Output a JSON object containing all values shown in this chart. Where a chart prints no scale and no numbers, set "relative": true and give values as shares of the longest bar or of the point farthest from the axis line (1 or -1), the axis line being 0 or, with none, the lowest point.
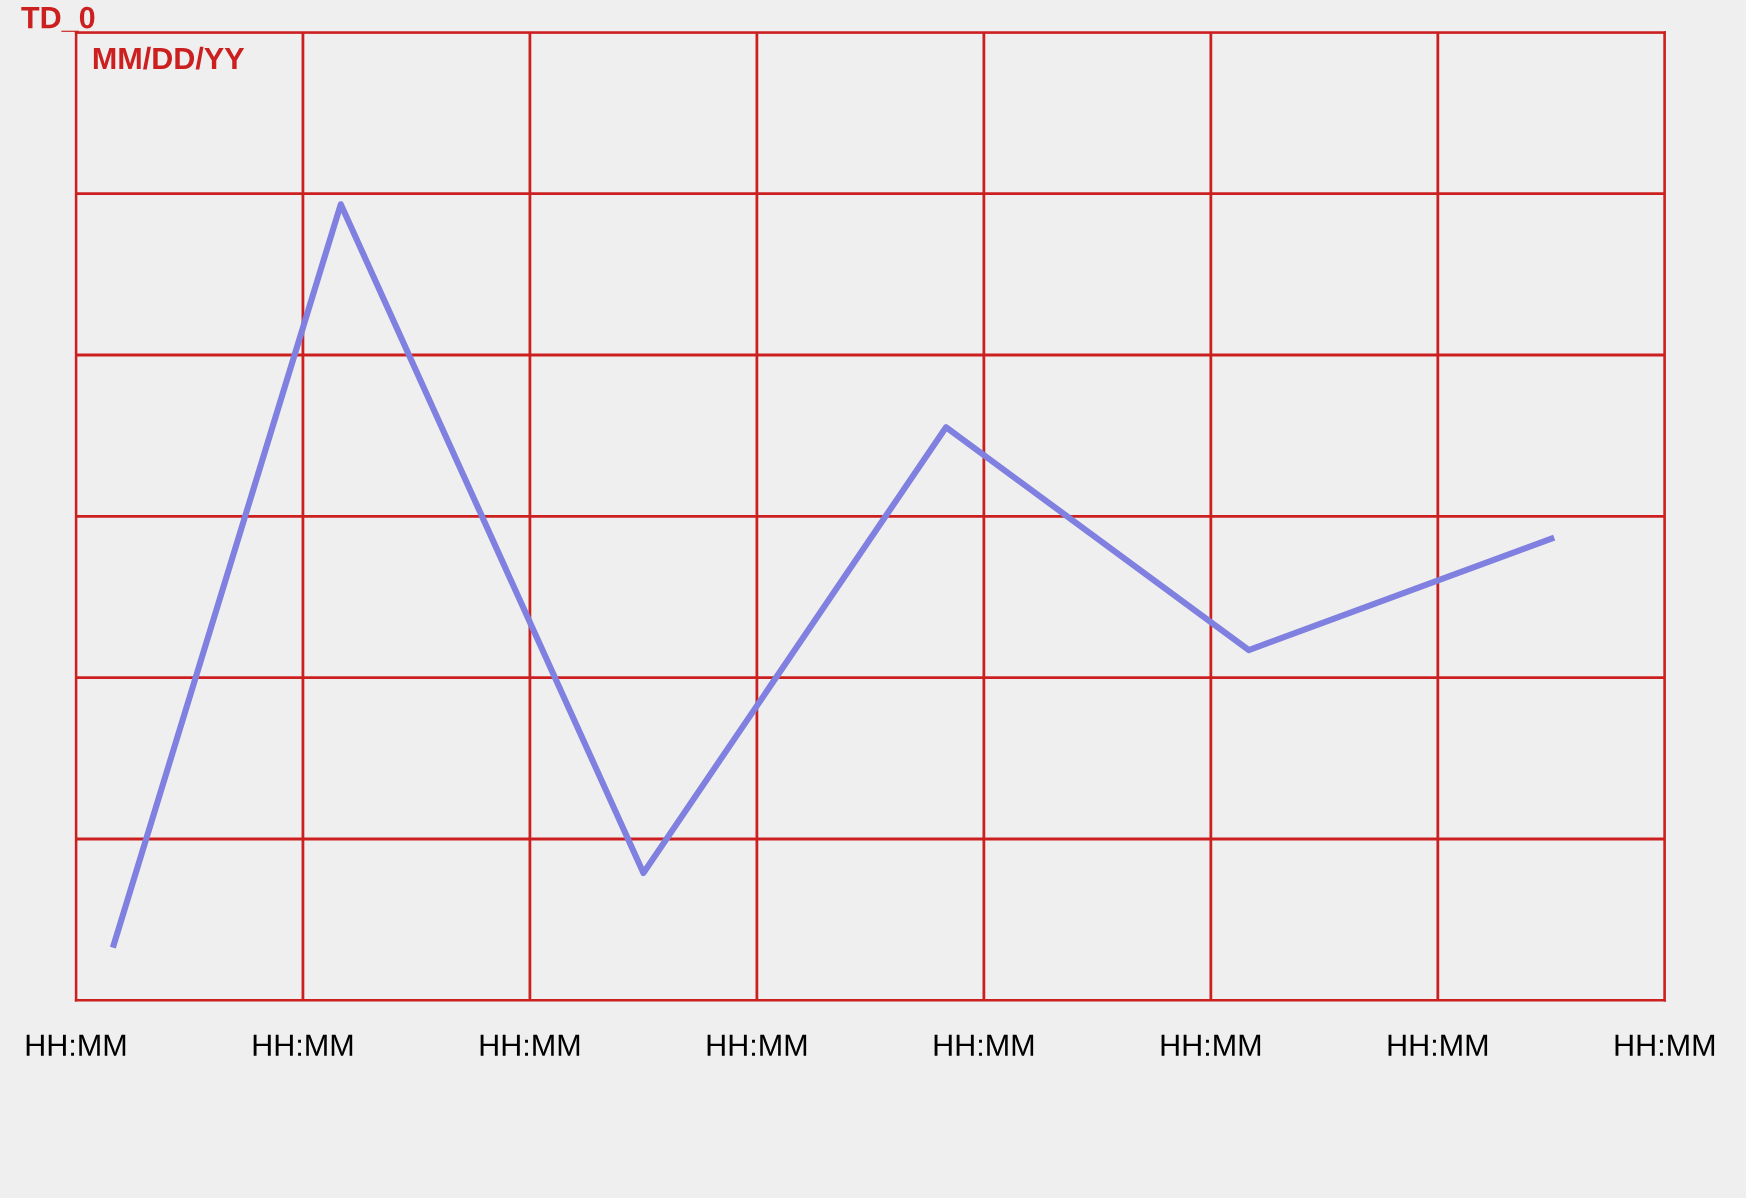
{
  "chart_data": {
    "type": "line",
    "title": "MM/DD/YY",
    "annotations": [
      "TD_0"
    ],
    "relative": true,
    "categories": [
      "HH:MM",
      null,
      null,
      null,
      null,
      null,
      "HH:MM",
      null,
      null,
      null,
      null,
      null,
      "HH:MM",
      null,
      null,
      null,
      null,
      null,
      "HH:MM",
      null,
      null,
      null,
      null,
      null,
      "HH:MM",
      null,
      null,
      null,
      null,
      null,
      "HH:MM",
      null,
      null,
      null,
      null,
      null,
      "HH:MM",
      null,
      null,
      null,
      null,
      null,
      "HH:MM"
    ],
    "series": [
      {
        "color": "#8080e0",
        "values": [
          null,
          0.07,
          null,
          null,
          null,
          null,
          null,
          1.0,
          null,
          null,
          null,
          null,
          null,
          null,
          null,
          0.16,
          null,
          null,
          null,
          null,
          null,
          null,
          null,
          0.72,
          null,
          null,
          null,
          null,
          null,
          null,
          null,
          0.44,
          null,
          null,
          null,
          null,
          null,
          null,
          null,
          0.58,
          null,
          null,
          null
        ]
      }
    ],
    "grid": true,
    "marker": "none",
    "line_style": "solid"
  }
}
